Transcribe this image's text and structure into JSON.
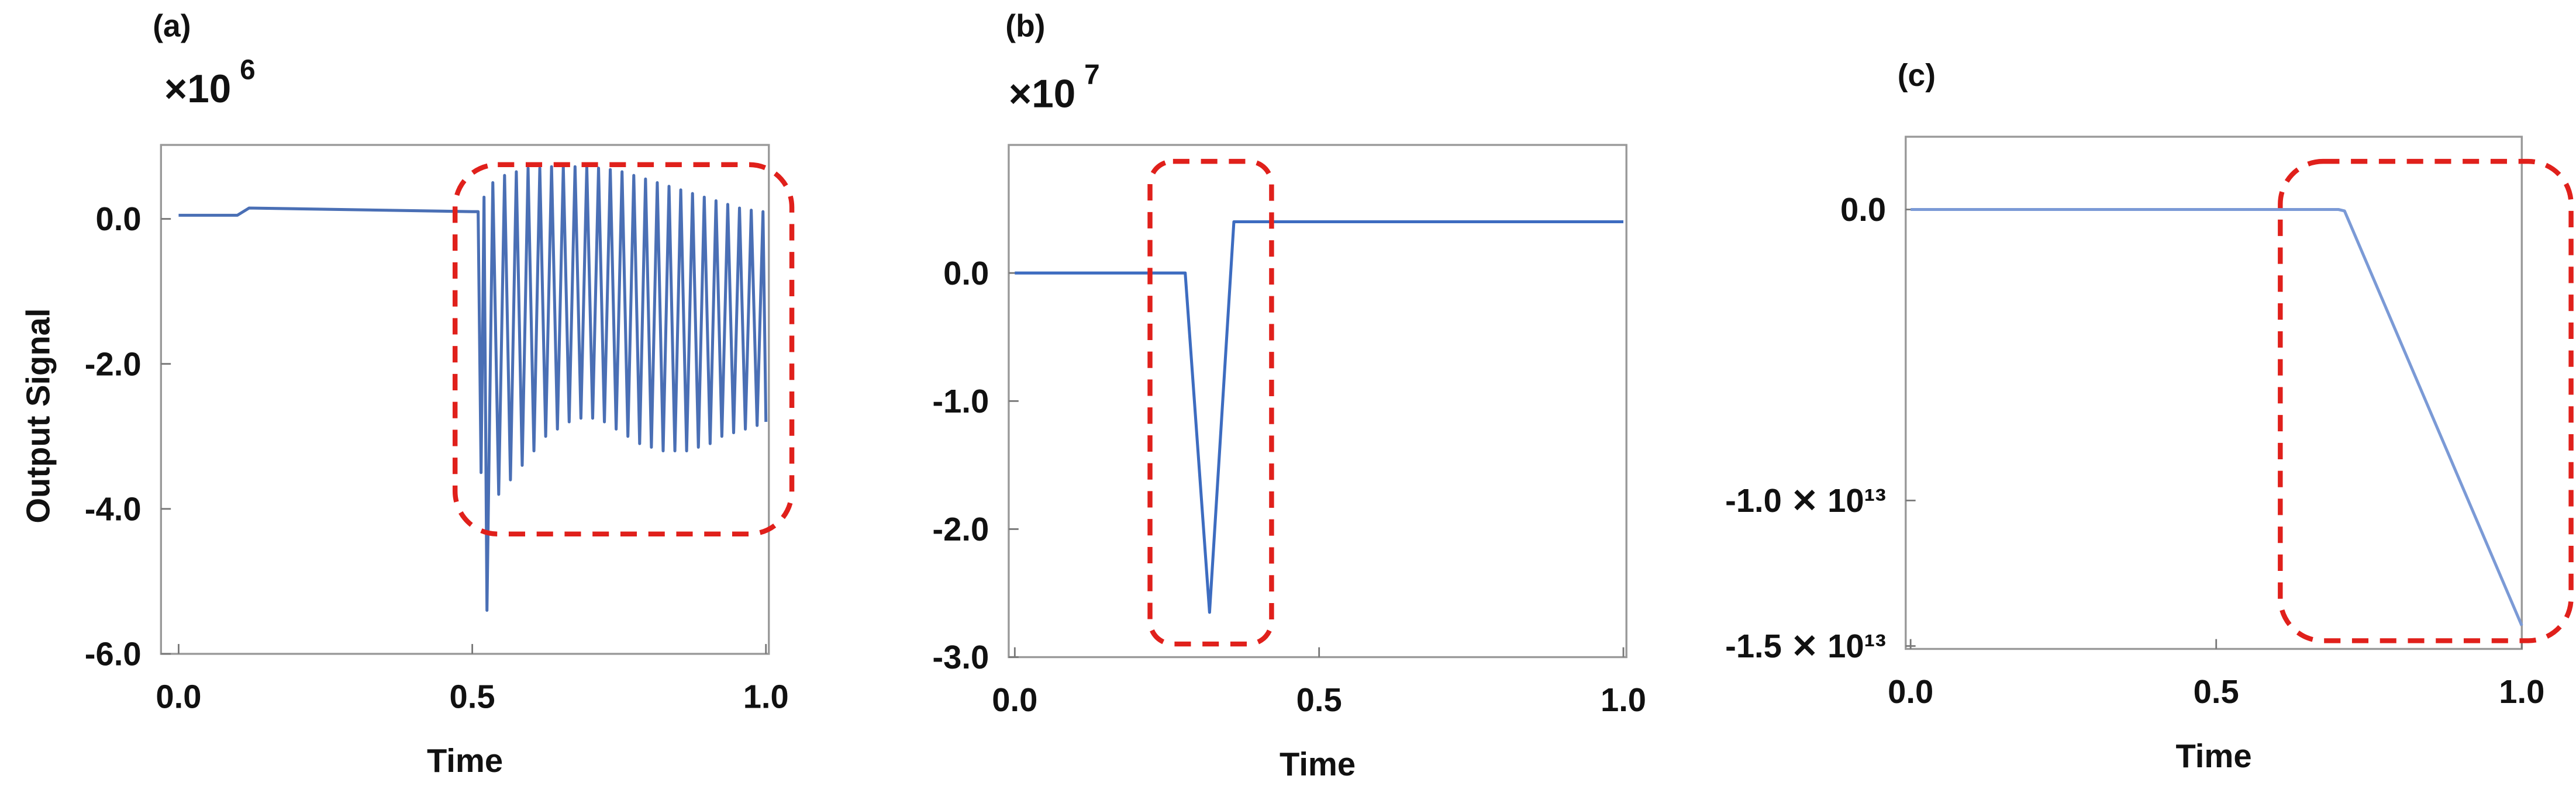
{
  "chart_data": [
    {
      "type": "line",
      "panel_label": "(a)",
      "y_multiplier": "×10",
      "y_multiplier_exponent": "6",
      "x_label": "Time",
      "y_label": "Output Signal",
      "xlim": [
        -0.03,
        1.005
      ],
      "ylim": [
        -6,
        1.02
      ],
      "xticks": [
        {
          "value": 0,
          "label": "0.0"
        },
        0.5,
        {
          "value": 1,
          "label": "1.0"
        }
      ],
      "yticks": [
        {
          "value": 0,
          "label": "0.0"
        },
        {
          "value": -2,
          "label": "-2.0"
        },
        {
          "value": -4,
          "label": "-4.0"
        },
        {
          "value": -6,
          "label": "-6.0"
        }
      ],
      "series": [
        {
          "color": "#4a6fb5",
          "x": [
            0,
            0.1,
            0.12,
            0.5,
            0.51,
            0.515,
            0.52,
            0.525,
            0.535,
            0.545,
            0.555,
            0.565,
            0.575,
            0.585,
            0.595,
            0.605,
            0.615,
            0.625,
            0.635,
            0.645,
            0.655,
            0.665,
            0.675,
            0.685,
            0.695,
            0.705,
            0.715,
            0.725,
            0.735,
            0.745,
            0.755,
            0.765,
            0.775,
            0.785,
            0.795,
            0.805,
            0.815,
            0.825,
            0.835,
            0.845,
            0.855,
            0.865,
            0.875,
            0.885,
            0.895,
            0.905,
            0.915,
            0.925,
            0.935,
            0.945,
            0.955,
            0.965,
            0.975,
            0.985,
            0.995,
            1.0
          ],
          "values": [
            0.05,
            0.05,
            0.15,
            0.1,
            0.1,
            -3.5,
            0.3,
            -5.4,
            0.5,
            -3.8,
            0.6,
            -3.6,
            0.65,
            -3.4,
            0.7,
            -3.2,
            0.7,
            -3.0,
            0.72,
            -2.9,
            0.72,
            -2.8,
            0.72,
            -2.75,
            0.72,
            -2.75,
            0.7,
            -2.8,
            0.68,
            -2.9,
            0.65,
            -3.0,
            0.6,
            -3.1,
            0.55,
            -3.15,
            0.5,
            -3.2,
            0.45,
            -3.2,
            0.4,
            -3.2,
            0.35,
            -3.15,
            0.3,
            -3.1,
            0.25,
            -3.0,
            0.2,
            -2.95,
            0.15,
            -2.9,
            0.12,
            -2.85,
            0.1,
            -2.8
          ]
        }
      ]
    },
    {
      "type": "line",
      "panel_label": "(b)",
      "y_multiplier": "×10",
      "y_multiplier_exponent": "7",
      "x_label": "Time",
      "xlim": [
        -0.01,
        1.005
      ],
      "ylim": [
        -3,
        1.0
      ],
      "xticks": [
        {
          "value": 0,
          "label": "0.0"
        },
        0.5,
        {
          "value": 1,
          "label": "1.0"
        }
      ],
      "yticks": [
        {
          "value": 0,
          "label": "0.0"
        },
        {
          "value": -1,
          "label": "-1.0"
        },
        {
          "value": -2,
          "label": "-2.0"
        },
        {
          "value": -3,
          "label": "-3.0"
        }
      ],
      "series": [
        {
          "color": "#3d6cc0",
          "x": [
            0,
            0.28,
            0.32,
            0.36,
            1.0
          ],
          "values": [
            0,
            0,
            -2.65,
            0.4,
            0.4
          ]
        }
      ]
    },
    {
      "type": "line",
      "panel_label": "(c)",
      "x_label": "Time",
      "xlim": [
        -0.008,
        1.0
      ],
      "ylim": [
        -15100000000000,
        2500000000000
      ],
      "xticks": [
        {
          "value": 0,
          "label": "0.0"
        },
        0.5,
        {
          "value": 1,
          "label": "1.0"
        }
      ],
      "yticks": [
        {
          "value": 0,
          "label": "0.0"
        },
        {
          "value": -10000000000000,
          "label": "-1.0 ✕ 10¹³"
        },
        {
          "value": -15000000000000,
          "label": "-1.5 ✕ 10¹³"
        }
      ],
      "series": [
        {
          "color": "#7b9ad6",
          "x": [
            0,
            0.7,
            0.71,
            1.0
          ],
          "values": [
            0,
            0,
            -50000000000,
            -14300000000000
          ]
        }
      ]
    }
  ]
}
